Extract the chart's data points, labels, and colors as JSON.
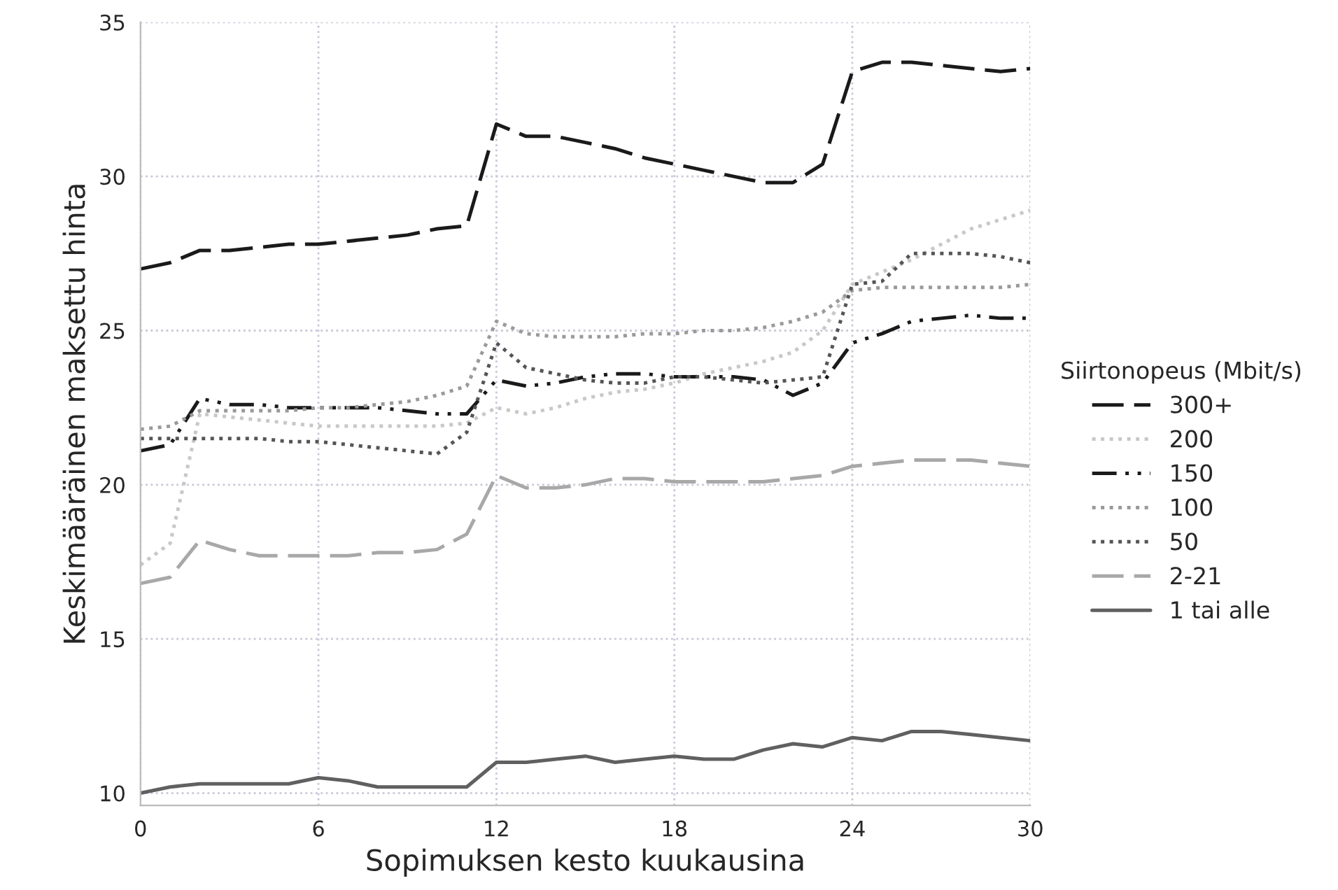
{
  "chart_data": {
    "type": "line",
    "xlabel": "Sopimuksen kesto kuukausina",
    "ylabel": "Keskimääräinen maksettu hinta",
    "legend_title": "Siirtonopeus (Mbit/s)",
    "x": [
      0,
      1,
      2,
      3,
      4,
      5,
      6,
      7,
      8,
      9,
      10,
      11,
      12,
      13,
      14,
      15,
      16,
      17,
      18,
      19,
      20,
      21,
      22,
      23,
      24,
      25,
      26,
      27,
      28,
      29,
      30
    ],
    "series": [
      {
        "name": "300+",
        "color": "#1a1a1a",
        "line_style": "dashed",
        "values": [
          27.0,
          27.2,
          27.6,
          27.6,
          27.7,
          27.8,
          27.8,
          27.9,
          28.0,
          28.1,
          28.3,
          28.4,
          31.7,
          31.3,
          31.3,
          31.1,
          30.9,
          30.6,
          30.4,
          30.2,
          30.0,
          29.8,
          29.8,
          30.4,
          33.4,
          33.7,
          33.7,
          33.6,
          33.5,
          33.4,
          33.5
        ]
      },
      {
        "name": "200",
        "color": "#c8c8c8",
        "line_style": "dotted",
        "values": [
          17.4,
          18.1,
          22.3,
          22.2,
          22.1,
          22.0,
          21.9,
          21.9,
          21.9,
          21.9,
          21.9,
          22.0,
          22.5,
          22.3,
          22.5,
          22.8,
          23.0,
          23.1,
          23.3,
          23.6,
          23.8,
          24.0,
          24.3,
          25.0,
          26.5,
          26.9,
          27.3,
          27.8,
          28.3,
          28.6,
          28.9
        ]
      },
      {
        "name": "150",
        "color": "#1a1a1a",
        "line_style": "dashdot",
        "values": [
          21.1,
          21.3,
          22.8,
          22.6,
          22.6,
          22.5,
          22.5,
          22.5,
          22.5,
          22.4,
          22.3,
          22.3,
          23.4,
          23.2,
          23.3,
          23.5,
          23.6,
          23.6,
          23.5,
          23.5,
          23.5,
          23.4,
          22.9,
          23.3,
          24.6,
          24.9,
          25.3,
          25.4,
          25.5,
          25.4,
          25.4
        ]
      },
      {
        "name": "100",
        "color": "#9a9a9a",
        "line_style": "dotted",
        "values": [
          21.8,
          21.9,
          22.4,
          22.4,
          22.4,
          22.4,
          22.5,
          22.5,
          22.6,
          22.7,
          22.9,
          23.2,
          25.3,
          24.9,
          24.8,
          24.8,
          24.8,
          24.9,
          24.9,
          25.0,
          25.0,
          25.1,
          25.3,
          25.6,
          26.3,
          26.4,
          26.4,
          26.4,
          26.4,
          26.4,
          26.5
        ]
      },
      {
        "name": "50",
        "color": "#555555",
        "line_style": "dotted",
        "values": [
          21.5,
          21.5,
          21.5,
          21.5,
          21.5,
          21.4,
          21.4,
          21.3,
          21.2,
          21.1,
          21.0,
          21.7,
          24.6,
          23.8,
          23.6,
          23.4,
          23.3,
          23.3,
          23.5,
          23.5,
          23.4,
          23.3,
          23.4,
          23.5,
          26.5,
          26.6,
          27.5,
          27.5,
          27.5,
          27.4,
          27.2
        ]
      },
      {
        "name": "2-21",
        "color": "#a8a8a8",
        "line_style": "dashed",
        "values": [
          16.8,
          17.0,
          18.2,
          17.9,
          17.7,
          17.7,
          17.7,
          17.7,
          17.8,
          17.8,
          17.9,
          18.4,
          20.3,
          19.9,
          19.9,
          20.0,
          20.2,
          20.2,
          20.1,
          20.1,
          20.1,
          20.1,
          20.2,
          20.3,
          20.6,
          20.7,
          20.8,
          20.8,
          20.8,
          20.7,
          20.6
        ]
      },
      {
        "name": "1 tai alle",
        "color": "#606060",
        "line_style": "solid",
        "values": [
          10.0,
          10.2,
          10.3,
          10.3,
          10.3,
          10.3,
          10.5,
          10.4,
          10.2,
          10.2,
          10.2,
          10.2,
          11.0,
          11.0,
          11.1,
          11.2,
          11.0,
          11.1,
          11.2,
          11.1,
          11.1,
          11.4,
          11.6,
          11.5,
          11.8,
          11.7,
          12.0,
          12.0,
          11.9,
          11.8,
          11.7
        ]
      }
    ],
    "xlim": [
      0,
      30
    ],
    "xticks": [
      0,
      6,
      12,
      18,
      24,
      30
    ],
    "ylim": [
      9.6,
      35
    ],
    "yticks": [
      10,
      15,
      20,
      25,
      30,
      35
    ],
    "grid": true,
    "legend": "right"
  }
}
